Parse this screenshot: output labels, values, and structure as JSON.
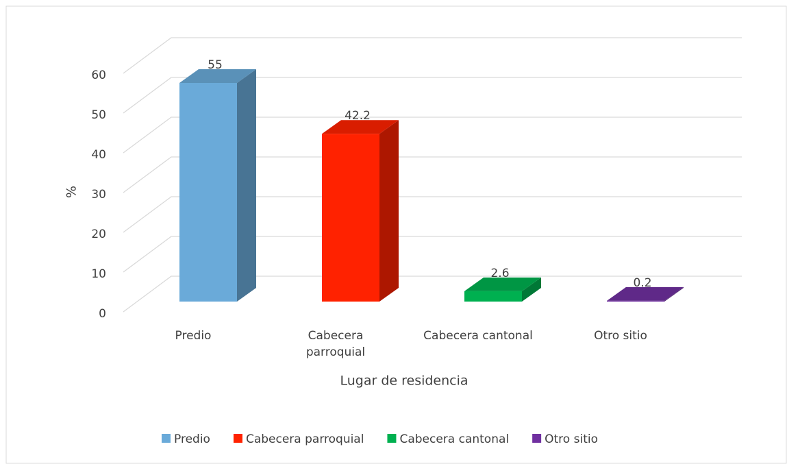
{
  "chart_data": {
    "type": "bar3d",
    "categories": [
      "Predio",
      "Cabecera parroquial",
      "Cabecera cantonal",
      "Otro sitio"
    ],
    "values": [
      55,
      42.2,
      2.6,
      0.2
    ],
    "colors": [
      "#6aaad9",
      "#ff2200",
      "#00b050",
      "#7030a0"
    ],
    "xlabel": "Lugar de residencia",
    "ylabel": "%",
    "ylim": [
      0,
      60
    ],
    "yticks": [
      0,
      10,
      20,
      30,
      40,
      50,
      60
    ],
    "grid": true,
    "legend": "bottom"
  }
}
